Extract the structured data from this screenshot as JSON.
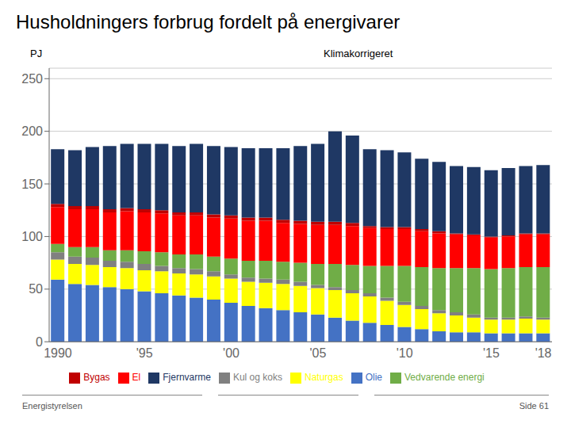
{
  "chart_data": {
    "type": "bar",
    "stacked": true,
    "title": "Husholdningers forbrug fordelt på energivarer",
    "subtitle": "Klimakorrigeret",
    "y_label": "PJ",
    "categories": [
      "1990",
      null,
      null,
      null,
      null,
      "'95",
      null,
      null,
      null,
      null,
      "'00",
      null,
      null,
      null,
      null,
      "'05",
      null,
      null,
      null,
      null,
      "'10",
      null,
      null,
      null,
      null,
      "'15",
      null,
      null,
      "'18"
    ],
    "series": [
      {
        "name": "Olie",
        "color": "#4472C4",
        "values": [
          59,
          55,
          54,
          52,
          50,
          48,
          46,
          44,
          42,
          40,
          37,
          34,
          32,
          30,
          28,
          26,
          23,
          20,
          18,
          16,
          14,
          12,
          10,
          9,
          9,
          8,
          8,
          8,
          8
        ]
      },
      {
        "name": "Naturgas",
        "color": "#FFFF00",
        "values": [
          19,
          19,
          19,
          19,
          20,
          20,
          21,
          21,
          22,
          22,
          23,
          23,
          24,
          25,
          25,
          25,
          26,
          26,
          25,
          23,
          21,
          19,
          17,
          16,
          14,
          13,
          13,
          14,
          13
        ]
      },
      {
        "name": "Kul og koks",
        "color": "#808080",
        "values": [
          7,
          7,
          7,
          6,
          6,
          6,
          5,
          5,
          5,
          5,
          4,
          4,
          4,
          4,
          4,
          3,
          3,
          3,
          3,
          3,
          3,
          3,
          3,
          3,
          3,
          2,
          2,
          2,
          2
        ]
      },
      {
        "name": "Vedvarende energi",
        "color": "#70AD47",
        "values": [
          8,
          9,
          10,
          10,
          11,
          12,
          13,
          13,
          14,
          14,
          15,
          16,
          17,
          17,
          18,
          20,
          22,
          24,
          26,
          30,
          34,
          37,
          40,
          42,
          44,
          46,
          47,
          47,
          48
        ]
      },
      {
        "name": "El",
        "color": "#FF0000",
        "values": [
          35,
          36,
          36,
          36,
          37,
          37,
          37,
          37,
          37,
          37,
          38,
          38,
          38,
          37,
          37,
          37,
          37,
          37,
          36,
          35,
          35,
          34,
          33,
          32,
          31,
          30,
          30,
          31,
          31
        ]
      },
      {
        "name": "Bygas",
        "color": "#C00000",
        "values": [
          3,
          3,
          3,
          3,
          3,
          3,
          3,
          3,
          3,
          3,
          3,
          3,
          3,
          3,
          3,
          3,
          3,
          3,
          2,
          2,
          2,
          2,
          2,
          1,
          1,
          1,
          1,
          1,
          1
        ]
      },
      {
        "name": "Fjernvarme",
        "color": "#1F3864",
        "values": [
          52,
          53,
          56,
          60,
          61,
          62,
          63,
          63,
          65,
          65,
          65,
          66,
          66,
          68,
          71,
          74,
          86,
          83,
          73,
          73,
          71,
          67,
          66,
          64,
          64,
          63,
          64,
          64,
          65
        ]
      }
    ],
    "ylim": [
      0,
      260
    ],
    "yticks": [
      0,
      50,
      100,
      150,
      200,
      250
    ],
    "grid": true,
    "legend": "bottom",
    "annotations": [
      "Energistyrelsen",
      "Side 61"
    ]
  }
}
